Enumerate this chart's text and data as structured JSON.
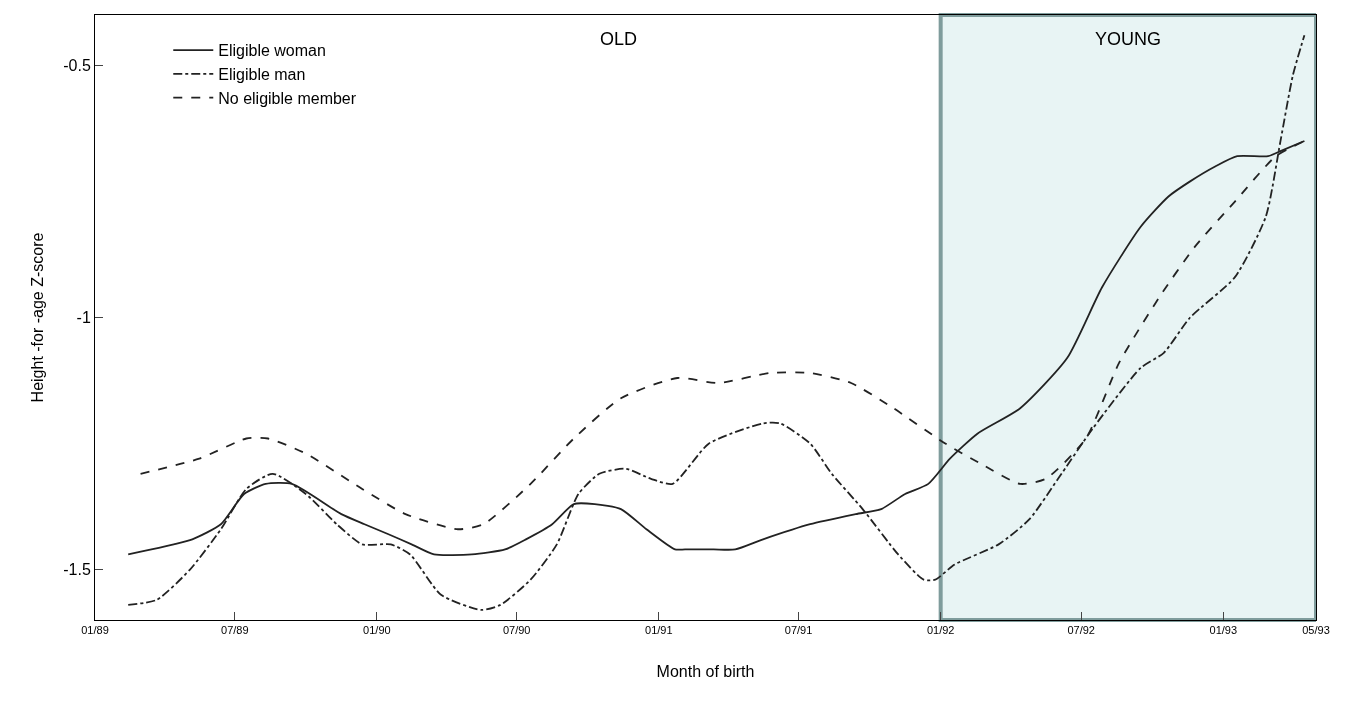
{
  "chart_data": {
    "type": "line",
    "xlabel": "Month of birth",
    "ylabel": "Height -for -age Z-score",
    "xlim": [
      "1989-01-01",
      "1993-05-01"
    ],
    "xticks": [
      {
        "value": "1989-01-01",
        "label": "01/89"
      },
      {
        "value": "1989-07-01",
        "label": "07/89"
      },
      {
        "value": "1990-01-01",
        "label": "01/90"
      },
      {
        "value": "1990-07-01",
        "label": "07/90"
      },
      {
        "value": "1991-01-01",
        "label": "01/91"
      },
      {
        "value": "1991-07-01",
        "label": "07/91"
      },
      {
        "value": "1992-01-01",
        "label": "01/92"
      },
      {
        "value": "1992-07-01",
        "label": "07/92"
      },
      {
        "value": "1993-01-01",
        "label": "01/93"
      },
      {
        "value": "1993-05-01",
        "label": "05/93"
      }
    ],
    "ylim": [
      -1.6,
      -0.4
    ],
    "yticks": [
      -1.5,
      -1,
      -0.5
    ],
    "grid": false,
    "legend": "top left",
    "marker": "none",
    "bands": [
      {
        "axis": "x",
        "from": "1992-01-01",
        "to": "1993-05-01",
        "label": "YOUNG",
        "color": "#e8f4f4"
      }
    ],
    "annotations": [
      "OLD"
    ],
    "series": [
      {
        "name": "Eligible woman",
        "color": "#222222",
        "line_style": "solid",
        "x": [
          "1989-02-13",
          "1989-04-13",
          "1989-05-07",
          "1989-06-13",
          "1989-07-13",
          "1989-08-10",
          "1989-09-13",
          "1989-11-16",
          "1989-12-16",
          "1990-01-16",
          "1990-02-15",
          "1990-03-16",
          "1990-05-04",
          "1990-06-16",
          "1990-07-13",
          "1990-08-16",
          "1990-09-13",
          "1990-10-10",
          "1990-11-13",
          "1990-12-16",
          "1991-01-22",
          "1991-02-04",
          "1991-03-13",
          "1991-04-10",
          "1991-05-16",
          "1991-07-16",
          "1991-09-13",
          "1991-10-16",
          "1991-11-16",
          "1991-12-16",
          "1992-01-13",
          "1992-02-18",
          "1992-04-13",
          "1992-06-13",
          "1992-07-28",
          "1992-09-16",
          "1992-10-22",
          "1992-11-19",
          "1992-12-22",
          "1993-01-19",
          "1993-02-28",
          "1993-03-16",
          "1993-04-16"
        ],
        "values": [
          -1.47,
          -1.45,
          -1.44,
          -1.41,
          -1.35,
          -1.33,
          -1.33,
          -1.39,
          -1.41,
          -1.43,
          -1.45,
          -1.47,
          -1.47,
          -1.46,
          -1.44,
          -1.41,
          -1.37,
          -1.37,
          -1.38,
          -1.42,
          -1.46,
          -1.46,
          -1.46,
          -1.46,
          -1.44,
          -1.41,
          -1.39,
          -1.38,
          -1.35,
          -1.33,
          -1.28,
          -1.23,
          -1.18,
          -1.08,
          -0.94,
          -0.82,
          -0.76,
          -0.73,
          -0.7,
          -0.68,
          -0.68,
          -0.67,
          -0.65
        ]
      },
      {
        "name": "Eligible man",
        "color": "#222222",
        "line_style": "dashdot",
        "x": [
          "1989-02-13",
          "1989-03-22",
          "1989-05-04",
          "1989-06-13",
          "1989-07-16",
          "1989-08-19",
          "1989-10-01",
          "1989-11-10",
          "1989-12-13",
          "1990-01-19",
          "1990-02-13",
          "1990-03-25",
          "1990-05-16",
          "1990-06-10",
          "1990-07-19",
          "1990-08-22",
          "1990-09-19",
          "1990-10-16",
          "1990-11-19",
          "1990-12-22",
          "1991-01-19",
          "1991-03-07",
          "1991-05-16",
          "1991-06-07",
          "1991-07-16",
          "1991-08-13",
          "1991-09-22",
          "1991-11-07",
          "1991-12-10",
          "1991-12-25",
          "1992-01-19",
          "1992-03-16",
          "1992-04-25",
          "1992-06-01",
          "1992-07-16",
          "1992-09-16",
          "1992-10-16",
          "1992-11-19",
          "1993-01-16",
          "1993-02-25",
          "1993-03-16",
          "1993-04-01",
          "1993-04-16"
        ],
        "values": [
          -1.57,
          -1.56,
          -1.5,
          -1.42,
          -1.34,
          -1.31,
          -1.35,
          -1.41,
          -1.45,
          -1.45,
          -1.47,
          -1.55,
          -1.58,
          -1.57,
          -1.52,
          -1.45,
          -1.35,
          -1.31,
          -1.3,
          -1.32,
          -1.33,
          -1.25,
          -1.21,
          -1.21,
          -1.25,
          -1.31,
          -1.38,
          -1.47,
          -1.52,
          -1.52,
          -1.49,
          -1.45,
          -1.4,
          -1.32,
          -1.22,
          -1.1,
          -1.07,
          -1.0,
          -0.92,
          -0.8,
          -0.65,
          -0.52,
          -0.44
        ]
      },
      {
        "name": "No eligible member",
        "color": "#222222",
        "line_style": "dashed",
        "x": [
          "1989-03-01",
          "1989-05-16",
          "1989-07-16",
          "1989-08-13",
          "1989-10-01",
          "1989-12-13",
          "1990-02-07",
          "1990-04-16",
          "1990-05-19",
          "1990-07-19",
          "1990-09-13",
          "1990-11-13",
          "1991-01-25",
          "1991-03-19",
          "1991-05-25",
          "1991-07-16",
          "1991-09-07",
          "1991-11-01",
          "1992-01-07",
          "1992-02-22",
          "1992-04-13",
          "1992-05-16",
          "1992-07-07",
          "1992-08-19",
          "1992-10-10",
          "1992-11-25",
          "1993-01-16",
          "1993-03-10",
          "1993-04-16"
        ],
        "values": [
          -1.31,
          -1.28,
          -1.24,
          -1.24,
          -1.27,
          -1.34,
          -1.39,
          -1.42,
          -1.41,
          -1.33,
          -1.24,
          -1.16,
          -1.12,
          -1.13,
          -1.11,
          -1.11,
          -1.13,
          -1.18,
          -1.25,
          -1.29,
          -1.33,
          -1.32,
          -1.24,
          -1.09,
          -0.96,
          -0.86,
          -0.77,
          -0.68,
          -0.65
        ]
      }
    ]
  }
}
